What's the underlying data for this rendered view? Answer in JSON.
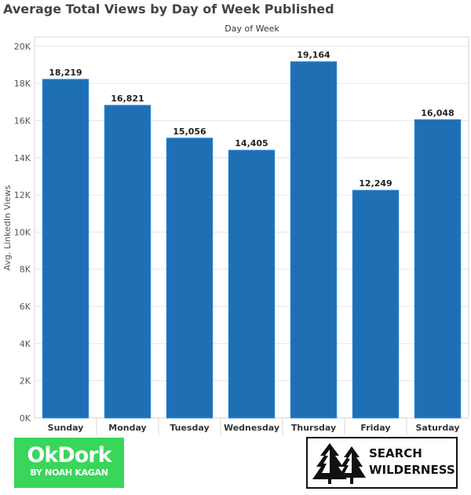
{
  "chart_data": {
    "type": "bar",
    "title": "Average Total Views by Day of Week Published",
    "header": "Day of Week",
    "ylabel": "Avg. LinkedIn Views",
    "categories": [
      "Sunday",
      "Monday",
      "Tuesday",
      "Wednesday",
      "Thursday",
      "Friday",
      "Saturday"
    ],
    "values": [
      18219,
      16821,
      15056,
      14405,
      19164,
      12249,
      16048
    ],
    "value_labels": [
      "18,219",
      "16,821",
      "15,056",
      "14,405",
      "19,164",
      "12,249",
      "16,048"
    ],
    "ylim": [
      0,
      20500
    ],
    "yticks": [
      0,
      2000,
      4000,
      6000,
      8000,
      10000,
      12000,
      14000,
      16000,
      18000,
      20000
    ],
    "ytick_labels": [
      "0K",
      "2K",
      "4K",
      "6K",
      "8K",
      "10K",
      "12K",
      "14K",
      "16K",
      "18K",
      "20K"
    ],
    "grid": true,
    "bar_color": "#1f6fb5"
  },
  "logos": {
    "left_line1": "OkDork",
    "left_line2": "BY NOAH KAGAN",
    "right_line1": "SEARCH",
    "right_line2": "WILDERNESS"
  }
}
